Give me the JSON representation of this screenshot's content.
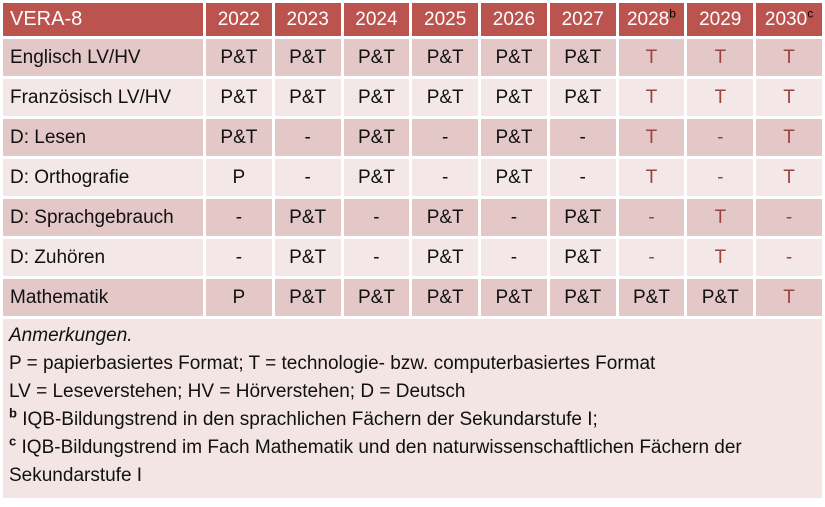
{
  "table": {
    "title": "VERA-8",
    "years": [
      {
        "label": "2022",
        "sup": ""
      },
      {
        "label": "2023",
        "sup": ""
      },
      {
        "label": "2024",
        "sup": ""
      },
      {
        "label": "2025",
        "sup": ""
      },
      {
        "label": "2026",
        "sup": ""
      },
      {
        "label": "2027",
        "sup": ""
      },
      {
        "label": "2028",
        "sup": "b"
      },
      {
        "label": "2029",
        "sup": ""
      },
      {
        "label": "2030",
        "sup": "c"
      }
    ],
    "rows": [
      {
        "label": "Englisch LV/HV",
        "values": [
          "P&T",
          "P&T",
          "P&T",
          "P&T",
          "P&T",
          "P&T",
          "T",
          "T",
          "T"
        ]
      },
      {
        "label": "Französisch LV/HV",
        "values": [
          "P&T",
          "P&T",
          "P&T",
          "P&T",
          "P&T",
          "P&T",
          "T",
          "T",
          "T"
        ]
      },
      {
        "label": "D: Lesen",
        "values": [
          "P&T",
          "-",
          "P&T",
          "-",
          "P&T",
          "-",
          "T",
          "-",
          "T"
        ]
      },
      {
        "label": "D: Orthografie",
        "values": [
          "P",
          "-",
          "P&T",
          "-",
          "P&T",
          "-",
          "T",
          "-",
          "T"
        ]
      },
      {
        "label": "D: Sprachgebrauch",
        "values": [
          "-",
          "P&T",
          "-",
          "P&T",
          "-",
          "P&T",
          "-",
          "T",
          "-"
        ]
      },
      {
        "label": "D: Zuhören",
        "values": [
          "-",
          "P&T",
          "-",
          "P&T",
          "-",
          "P&T",
          "-",
          "T",
          "-"
        ]
      },
      {
        "label": "Mathematik",
        "values": [
          "P",
          "P&T",
          "P&T",
          "P&T",
          "P&T",
          "P&T",
          "P&T",
          "P&T",
          "T"
        ]
      }
    ]
  },
  "notes": {
    "heading": "Anmerkungen.",
    "line_formats": "P = papierbasiertes Format; T = technologie- bzw. computerbasiertes Format",
    "line_abbreviations": "LV = Leseverstehen; HV = Hörverstehen; D = Deutsch",
    "note_b_marker": "b",
    "note_b_text": "IQB-Bildungstrend in den sprachlichen Fächern der Sekundarstufe I;",
    "note_c_marker": "c",
    "note_c_text": "IQB-Bildungstrend im Fach Mathematik und den naturwissenschaftlichen Fächern der Sekundarstufe I"
  },
  "colors": {
    "header_bg": "#bb544f",
    "header_text": "#ffffff",
    "row_band_dark": "#e3c8c7",
    "row_band_light": "#f3e8e7",
    "notes_bg": "#f2e5e4",
    "accent_text": "#9e423e",
    "body_text": "#111111"
  }
}
